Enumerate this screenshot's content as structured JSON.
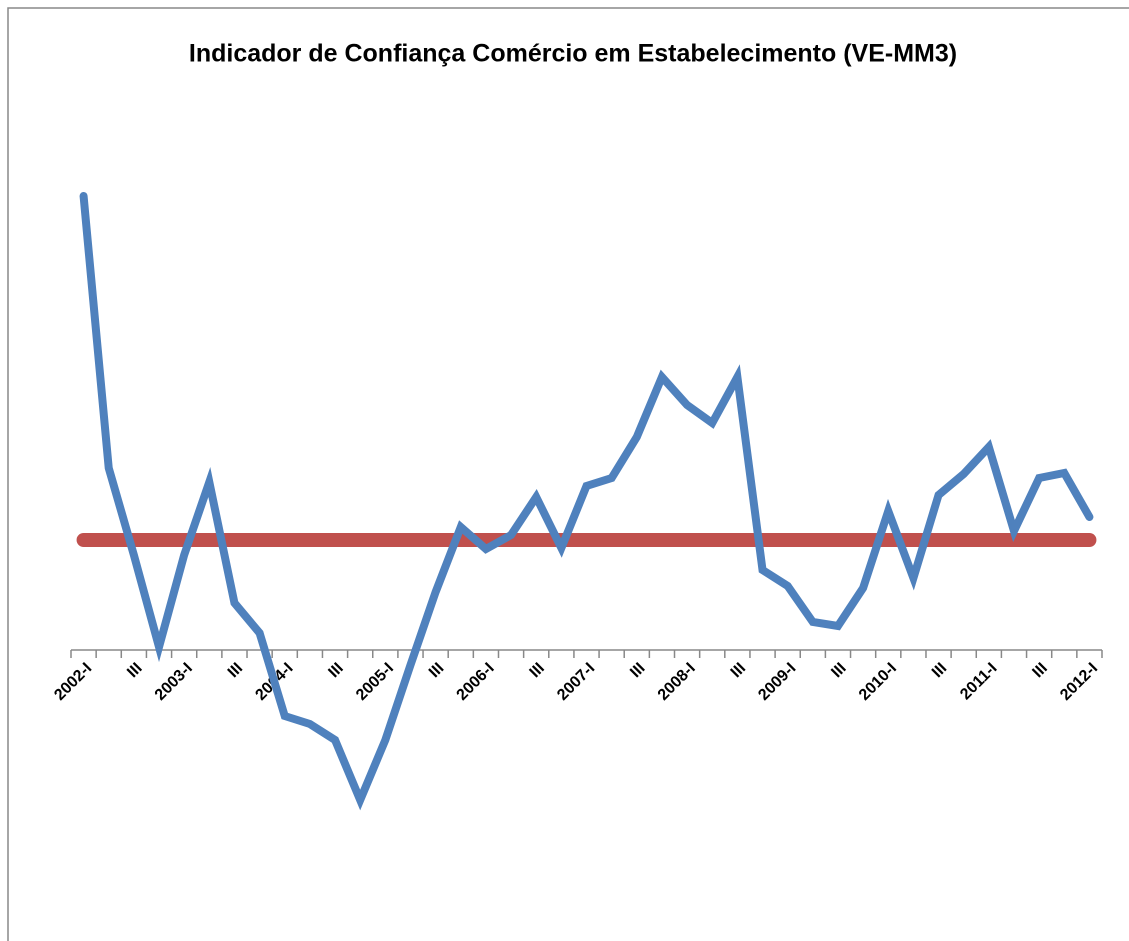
{
  "chart_data": {
    "type": "line",
    "title": "Indicador de Confiança Comércio em Estabelecimento (VE-MM3)",
    "categories": [
      "2002-I",
      null,
      "III",
      null,
      "2003-I",
      null,
      "III",
      null,
      "2004-I",
      null,
      "III",
      null,
      "2005-I",
      null,
      "III",
      null,
      "2006-I",
      null,
      "III",
      null,
      "2007-I",
      null,
      "III",
      null,
      "2008-I",
      null,
      "III",
      null,
      "2009-I",
      null,
      "III",
      null,
      "2010-I",
      null,
      "III",
      null,
      "2011-I",
      null,
      "III",
      null,
      "2012-I"
    ],
    "series": [
      {
        "color": "#4f81bd",
        "values": [
          45.4,
          18.2,
          9.5,
          0.3,
          9.5,
          16.8,
          4.7,
          1.7,
          -6.6,
          -7.4,
          -9,
          -15,
          -9,
          -1.5,
          5.8,
          12.3,
          10.1,
          11.5,
          15.3,
          10.2,
          16.4,
          17.2,
          21.3,
          27.3,
          24.5,
          22.7,
          27.3,
          8,
          6.4,
          2.8,
          2.4,
          6.2,
          13.9,
          7.2,
          15.5,
          17.6,
          20.3,
          11.9,
          17.2,
          17.7,
          13.3
        ]
      },
      {
        "color": "#c0504d",
        "values": [
          11,
          11,
          11,
          11,
          11,
          11,
          11,
          11,
          11,
          11,
          11,
          11,
          11,
          11,
          11,
          11,
          11,
          11,
          11,
          11,
          11,
          11,
          11,
          11,
          11,
          11,
          11,
          11,
          11,
          11,
          11,
          11,
          11,
          11,
          11,
          11,
          11,
          11,
          11,
          11,
          11
        ]
      }
    ],
    "ylim": [
      -25,
      50
    ]
  }
}
